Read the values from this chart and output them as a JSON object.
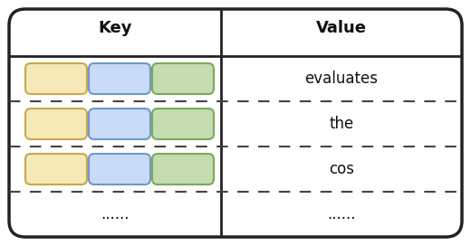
{
  "col1_header": "Key",
  "col2_header": "Value",
  "rows": [
    {
      "value": "evaluates"
    },
    {
      "value": "the"
    },
    {
      "value": "cos"
    },
    {
      "value": "......"
    }
  ],
  "dots_label": "......",
  "box_colors": [
    {
      "fill": "#f5e9b8",
      "edge": "#c8a84b"
    },
    {
      "fill": "#c8daf5",
      "edge": "#7098c8"
    },
    {
      "fill": "#c5dbb0",
      "edge": "#7aaa5a"
    }
  ],
  "bg_color": "#ffffff",
  "outer_border_color": "#222222",
  "header_line_color": "#222222",
  "dashed_line_color": "#444444",
  "divider_color": "#222222",
  "text_color": "#111111",
  "header_fontsize": 13,
  "cell_fontsize": 12,
  "fig_width": 5.2,
  "fig_height": 2.72
}
